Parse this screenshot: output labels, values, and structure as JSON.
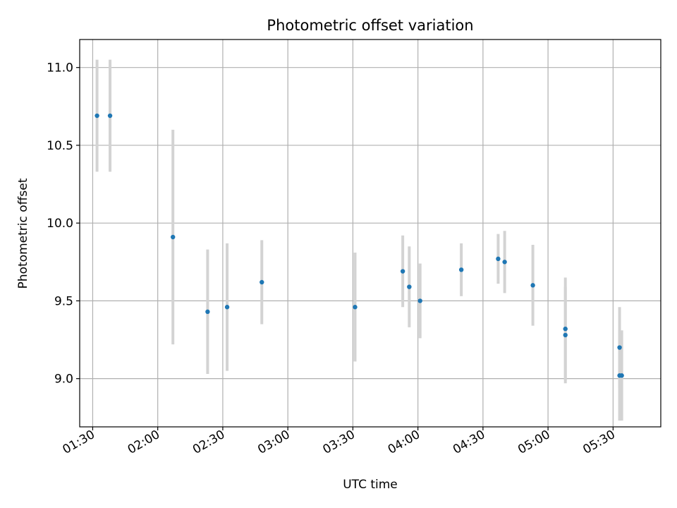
{
  "chart_data": {
    "type": "scatter",
    "title": "Photometric offset variation",
    "xlabel": "UTC time",
    "ylabel": "Photometric offset",
    "x_ticks": [
      "01:30",
      "02:00",
      "02:30",
      "03:00",
      "03:30",
      "04:00",
      "04:30",
      "05:00",
      "05:30"
    ],
    "y_ticks": [
      "9.0",
      "9.5",
      "10.0",
      "10.5",
      "11.0"
    ],
    "xlim": [
      "01:24",
      "05:52"
    ],
    "ylim": [
      8.69,
      11.18
    ],
    "grid": true,
    "point_color": "#1f77b4",
    "errorbar_color": "#d3d3d3",
    "points": [
      {
        "x": "01:32",
        "y": 10.69,
        "yerr": 0.36
      },
      {
        "x": "01:38",
        "y": 10.69,
        "yerr": 0.36
      },
      {
        "x": "02:07",
        "y": 9.91,
        "yerr": 0.69
      },
      {
        "x": "02:23",
        "y": 9.43,
        "yerr": 0.4
      },
      {
        "x": "02:32",
        "y": 9.46,
        "yerr": 0.41
      },
      {
        "x": "02:48",
        "y": 9.62,
        "yerr": 0.27
      },
      {
        "x": "03:31",
        "y": 9.46,
        "yerr": 0.35
      },
      {
        "x": "03:53",
        "y": 9.69,
        "yerr": 0.23
      },
      {
        "x": "03:56",
        "y": 9.59,
        "yerr": 0.26
      },
      {
        "x": "04:01",
        "y": 9.5,
        "yerr": 0.24
      },
      {
        "x": "04:20",
        "y": 9.7,
        "yerr": 0.17
      },
      {
        "x": "04:37",
        "y": 9.77,
        "yerr": 0.16
      },
      {
        "x": "04:40",
        "y": 9.75,
        "yerr": 0.2
      },
      {
        "x": "04:53",
        "y": 9.6,
        "yerr": 0.26
      },
      {
        "x": "05:08",
        "y": 9.32,
        "yerr": 0.33
      },
      {
        "x": "05:08",
        "y": 9.28,
        "yerr": 0.31
      },
      {
        "x": "05:33",
        "y": 9.2,
        "yerr": 0.26
      },
      {
        "x": "05:33",
        "y": 9.02,
        "yerr": 0.29
      },
      {
        "x": "05:34",
        "y": 9.02,
        "yerr": 0.29
      }
    ]
  }
}
